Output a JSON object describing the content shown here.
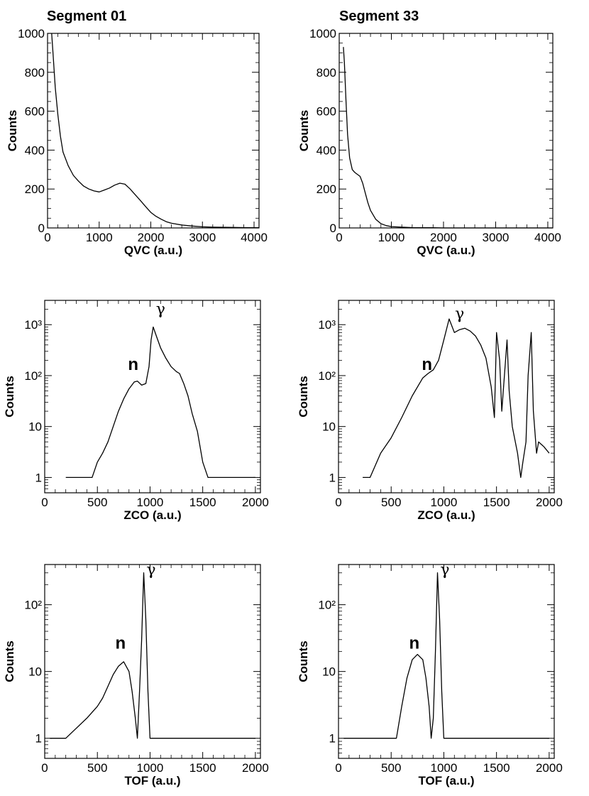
{
  "figure": {
    "left_title": "Segment 01",
    "right_title": "Segment 33"
  },
  "chart_data": [
    {
      "type": "line",
      "panel": "Segment 01 - QVC",
      "xlabel": "QVC (a.u.)",
      "ylabel": "Counts",
      "xlim": [
        0,
        4096
      ],
      "ylim": [
        0,
        1000
      ],
      "yscale": "linear",
      "xticks": [
        0,
        1000,
        2000,
        3000,
        4000
      ],
      "yticks": [
        0,
        200,
        400,
        600,
        800,
        1000
      ],
      "annotations": [],
      "series": [
        {
          "x": [
            80,
            100,
            150,
            200,
            250,
            300,
            400,
            500,
            600,
            700,
            800,
            900,
            1000,
            1100,
            1200,
            1300,
            1400,
            1500,
            1600,
            1700,
            1800,
            1900,
            2000,
            2100,
            2200,
            2300,
            2400,
            2600,
            2800,
            3000,
            3200,
            3500,
            3800,
            4096
          ],
          "y": [
            1000,
            920,
            720,
            580,
            470,
            390,
            320,
            270,
            240,
            215,
            200,
            190,
            185,
            195,
            205,
            220,
            230,
            225,
            200,
            170,
            140,
            110,
            80,
            60,
            45,
            32,
            24,
            15,
            10,
            6,
            4,
            3,
            2,
            1
          ]
        }
      ]
    },
    {
      "type": "line",
      "panel": "Segment 33 - QVC",
      "xlabel": "QVC (a.u.)",
      "ylabel": "Counts",
      "xlim": [
        0,
        4096
      ],
      "ylim": [
        0,
        1000
      ],
      "yscale": "linear",
      "xticks": [
        0,
        1000,
        2000,
        3000,
        4000
      ],
      "yticks": [
        0,
        200,
        400,
        600,
        800,
        1000
      ],
      "annotations": [],
      "series": [
        {
          "x": [
            80,
            100,
            130,
            160,
            200,
            250,
            300,
            350,
            400,
            450,
            500,
            550,
            600,
            700,
            800,
            900,
            1000,
            1200,
            1400,
            1600,
            1800,
            2000,
            2500,
            3000,
            3500,
            4096
          ],
          "y": [
            930,
            850,
            650,
            480,
            360,
            300,
            285,
            275,
            265,
            230,
            180,
            130,
            90,
            45,
            22,
            12,
            7,
            4,
            2,
            1,
            1,
            0,
            0,
            0,
            0,
            0
          ]
        }
      ]
    },
    {
      "type": "line",
      "panel": "Segment 01 - ZCO",
      "xlabel": "ZCO (a.u.)",
      "ylabel": "Counts",
      "xlim": [
        0,
        2048
      ],
      "ylim": [
        0.5,
        3000
      ],
      "yscale": "log",
      "xticks": [
        0,
        500,
        1000,
        1500,
        2000
      ],
      "yticks": [
        1,
        10,
        100,
        1000
      ],
      "ytick_labels": [
        "1",
        "10",
        "10²",
        "10³"
      ],
      "annotations": [
        {
          "text": "n",
          "x": 840,
          "y": 130
        },
        {
          "text": "γ",
          "x": 1100,
          "y": 1600
        }
      ],
      "series": [
        {
          "x": [
            200,
            300,
            400,
            450,
            500,
            550,
            600,
            650,
            700,
            750,
            800,
            850,
            880,
            920,
            960,
            990,
            1010,
            1030,
            1060,
            1100,
            1150,
            1200,
            1250,
            1280,
            1320,
            1360,
            1400,
            1450,
            1500,
            1550,
            1600,
            1700,
            1800,
            1900,
            2000
          ],
          "y": [
            1,
            1,
            1,
            1,
            2,
            3,
            5,
            10,
            20,
            35,
            55,
            75,
            78,
            65,
            70,
            150,
            500,
            900,
            600,
            350,
            220,
            150,
            120,
            110,
            70,
            40,
            18,
            8,
            2,
            1,
            1,
            1,
            1,
            1,
            1
          ]
        }
      ]
    },
    {
      "type": "line",
      "panel": "Segment 33 - ZCO",
      "xlabel": "ZCO (a.u.)",
      "ylabel": "Counts",
      "xlim": [
        0,
        2048
      ],
      "ylim": [
        0.5,
        3000
      ],
      "yscale": "log",
      "xticks": [
        0,
        500,
        1000,
        1500,
        2000
      ],
      "yticks": [
        1,
        10,
        100,
        1000
      ],
      "ytick_labels": [
        "1",
        "10",
        "10²",
        "10³"
      ],
      "annotations": [
        {
          "text": "n",
          "x": 840,
          "y": 130
        },
        {
          "text": "γ",
          "x": 1150,
          "y": 1300
        }
      ],
      "series": [
        {
          "x": [
            230,
            300,
            400,
            500,
            600,
            700,
            800,
            850,
            900,
            950,
            1000,
            1050,
            1080,
            1100,
            1150,
            1200,
            1250,
            1300,
            1350,
            1400,
            1450,
            1480,
            1500,
            1530,
            1550,
            1600,
            1620,
            1650,
            1700,
            1730,
            1750,
            1780,
            1800,
            1830,
            1850,
            1880,
            1900,
            1950,
            2000
          ],
          "y": [
            1,
            1,
            3,
            6,
            15,
            40,
            90,
            110,
            130,
            200,
            500,
            1300,
            900,
            700,
            800,
            850,
            750,
            600,
            400,
            220,
            60,
            15,
            700,
            200,
            20,
            500,
            50,
            10,
            3,
            1,
            2,
            5,
            100,
            700,
            20,
            3,
            5,
            4,
            3
          ]
        }
      ]
    },
    {
      "type": "line",
      "panel": "Segment 01 - TOF",
      "xlabel": "TOF (a.u.)",
      "ylabel": "Counts",
      "xlim": [
        0,
        2048
      ],
      "ylim": [
        0.5,
        400
      ],
      "yscale": "log",
      "xticks": [
        0,
        500,
        1000,
        1500,
        2000
      ],
      "yticks": [
        1,
        10,
        100
      ],
      "ytick_labels": [
        "1",
        "10",
        "10²"
      ],
      "annotations": [
        {
          "text": "n",
          "x": 720,
          "y": 22
        },
        {
          "text": "γ",
          "x": 1010,
          "y": 280
        }
      ],
      "series": [
        {
          "x": [
            50,
            200,
            400,
            500,
            550,
            600,
            650,
            700,
            750,
            800,
            830,
            860,
            880,
            900,
            920,
            940,
            960,
            980,
            1000,
            1020,
            1100,
            1300,
            1500,
            1700,
            2000
          ],
          "y": [
            1,
            1,
            2,
            3,
            4,
            6,
            9,
            12,
            14,
            10,
            5,
            2,
            1,
            5,
            30,
            300,
            60,
            5,
            1,
            1,
            1,
            1,
            1,
            1,
            1
          ]
        }
      ]
    },
    {
      "type": "line",
      "panel": "Segment 33 - TOF",
      "xlabel": "TOF (a.u.)",
      "ylabel": "Counts",
      "xlim": [
        0,
        2048
      ],
      "ylim": [
        0.5,
        400
      ],
      "yscale": "log",
      "xticks": [
        0,
        500,
        1000,
        1500,
        2000
      ],
      "yticks": [
        1,
        10,
        100
      ],
      "ytick_labels": [
        "1",
        "10",
        "10²"
      ],
      "annotations": [
        {
          "text": "n",
          "x": 720,
          "y": 22
        },
        {
          "text": "γ",
          "x": 1010,
          "y": 280
        }
      ],
      "series": [
        {
          "x": [
            50,
            200,
            400,
            500,
            550,
            600,
            650,
            700,
            750,
            800,
            830,
            860,
            880,
            900,
            920,
            940,
            960,
            980,
            1000,
            1020,
            1100,
            1300,
            1500,
            1700,
            2000
          ],
          "y": [
            1,
            1,
            1,
            1,
            1,
            3,
            8,
            15,
            18,
            15,
            8,
            3,
            1,
            2,
            20,
            300,
            60,
            5,
            1,
            1,
            1,
            1,
            1,
            1,
            1
          ]
        }
      ]
    }
  ]
}
